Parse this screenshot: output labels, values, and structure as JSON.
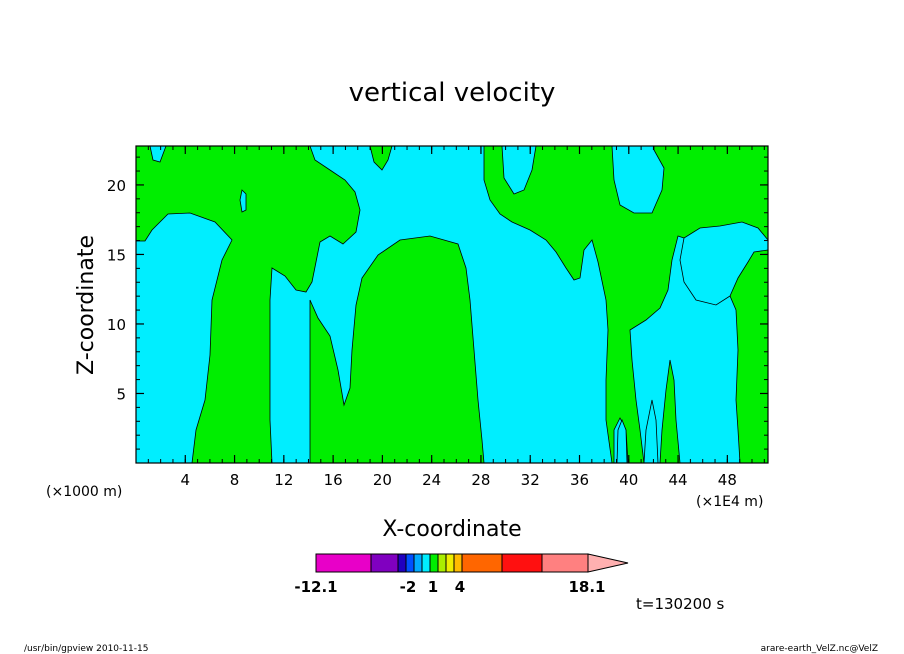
{
  "chart_data": {
    "type": "heatmap",
    "title": "vertical velocity",
    "xlabel": "X-coordinate",
    "ylabel": "Z-coordinate",
    "x_unit_left": "(×1000 m)",
    "x_unit_right": "(×1E4 m)",
    "x_ticks": [
      "4",
      "8",
      "12",
      "16",
      "20",
      "24",
      "28",
      "32",
      "36",
      "40",
      "44",
      "48"
    ],
    "y_ticks": [
      "5",
      "10",
      "15",
      "20"
    ],
    "xlim": [
      0,
      51.3
    ],
    "ylim": [
      0,
      22.8
    ],
    "fill_colors": {
      "negative": "#00eeff",
      "positive": "#00ee00"
    },
    "colorbar": {
      "labels": [
        "-12.1",
        "-2",
        "1",
        "4",
        "18.1"
      ],
      "colors": [
        "#e800c8",
        "#8000c0",
        "#2000c0",
        "#0050ff",
        "#00aaff",
        "#00eeff",
        "#00ee00",
        "#aaee00",
        "#eeee00",
        "#ffbb00",
        "#ff6600",
        "#ff1010",
        "#ff8080",
        "#ffb0b0"
      ]
    },
    "time_label": "t=130200 s"
  },
  "footer": {
    "left": "/usr/bin/gpview  2010-11-15",
    "right": "arare-earth_VelZ.nc@VelZ"
  }
}
